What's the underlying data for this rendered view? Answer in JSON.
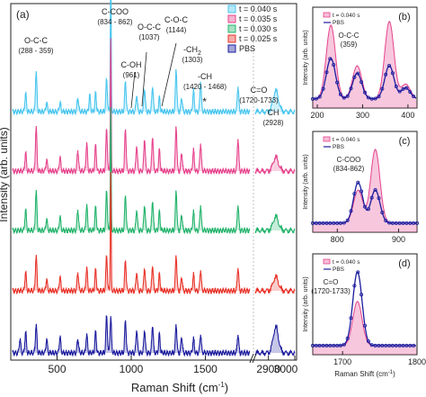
{
  "colors": {
    "c040": "#49c6ef",
    "c035": "#e6448d",
    "c030": "#22b36b",
    "c025": "#e8332a",
    "pbs": "#1c1c9e",
    "axis": "#222222",
    "marker": "#ff3a3a"
  },
  "main": {
    "panel_label": "(a)",
    "ylabel": "Intensity (arb. units)",
    "xlabel": "Raman Shift (cm",
    "xlabel_sup": "-1",
    "xlabel_end": ")",
    "xticks_left": [
      "500",
      "1000",
      "1500"
    ],
    "xticks_right": [
      "2900",
      "3000"
    ],
    "legend": [
      {
        "key": "c040",
        "label": "t = 0.040 s"
      },
      {
        "key": "c035",
        "label": "t = 0.035 s"
      },
      {
        "key": "c030",
        "label": "t = 0.030 s"
      },
      {
        "key": "c025",
        "label": "t = 0.025 s"
      },
      {
        "key": "pbs",
        "label": "PBS"
      }
    ],
    "annotations": [
      {
        "lines": [
          "O-C-C",
          "(288 - 359)"
        ]
      },
      {
        "lines": [
          "C-COO",
          "(834 - 862)"
        ]
      },
      {
        "lines": [
          "C-OH",
          "(961)"
        ]
      },
      {
        "lines": [
          "O-C-C",
          "(1037)"
        ]
      },
      {
        "lines": [
          "C-O-C",
          "(1144)"
        ]
      },
      {
        "lines": [
          "-CH",
          "(1303)"
        ],
        "sub": "2"
      },
      {
        "lines": [
          "-CH",
          "(1420 - 1468)"
        ]
      },
      {
        "lines": [
          "C=O",
          "(1720-1733)"
        ]
      },
      {
        "lines": [
          "CH",
          "(2928)"
        ]
      }
    ],
    "star": "*"
  },
  "insets": [
    {
      "label": "(b)",
      "legend": [
        "t = 0.040 s",
        "PBS"
      ],
      "annot": [
        "O-C-C",
        "(359)"
      ],
      "xticks": [
        "200",
        "300",
        "400"
      ],
      "ylabel": "Intensity (arb. units)"
    },
    {
      "label": "(c)",
      "legend": [
        "t = 0.040 s",
        "PBS"
      ],
      "annot": [
        "C-COO",
        "(834-862)"
      ],
      "xticks": [
        "800",
        "900"
      ],
      "ylabel": "Intensity (arb. units)"
    },
    {
      "label": "(d)",
      "legend": [
        "t = 0.040 s",
        "PBS"
      ],
      "annot": [
        "C=O",
        "(1720-1733)"
      ],
      "xticks": [
        "1700",
        "1800"
      ],
      "ylabel": "Intensity (arb. units)",
      "xlabel": "Raman Shift (cm",
      "xlabel_sup": "-1",
      "xlabel_end": ")"
    }
  ],
  "chart_data": [
    {
      "type": "line",
      "title": "",
      "xlabel": "Raman Shift (cm-1)",
      "ylabel": "Intensity (arb. units)",
      "xlim_segments": [
        [
          200,
          1800
        ],
        [
          2850,
          3000
        ]
      ],
      "axis_break": true,
      "grid": false,
      "legend_position": "top-right",
      "series_offset_stacked": true,
      "series": [
        {
          "name": "t = 0.040 s",
          "key": "c040",
          "offset": 4,
          "peaks": [
            [
              288,
              0.4
            ],
            [
              359,
              0.85
            ],
            [
              430,
              0.2
            ],
            [
              520,
              0.2
            ],
            [
              640,
              0.3
            ],
            [
              720,
              0.35
            ],
            [
              760,
              0.4
            ],
            [
              834,
              0.7
            ],
            [
              862,
              3.2
            ],
            [
              961,
              0.65
            ],
            [
              1037,
              0.35
            ],
            [
              1090,
              0.5
            ],
            [
              1144,
              0.55
            ],
            [
              1190,
              0.3
            ],
            [
              1303,
              0.9
            ],
            [
              1340,
              0.3
            ],
            [
              1420,
              0.45
            ],
            [
              1468,
              0.65
            ],
            [
              1720,
              0.55
            ],
            [
              2928,
              0.45
            ]
          ]
        },
        {
          "name": "t = 0.035 s",
          "key": "c035",
          "offset": 3,
          "peaks": [
            [
              288,
              0.4
            ],
            [
              359,
              0.95
            ],
            [
              430,
              0.25
            ],
            [
              520,
              0.3
            ],
            [
              640,
              0.45
            ],
            [
              700,
              0.6
            ],
            [
              760,
              0.55
            ],
            [
              834,
              0.9
            ],
            [
              862,
              2.8
            ],
            [
              961,
              0.9
            ],
            [
              1037,
              0.55
            ],
            [
              1090,
              0.7
            ],
            [
              1144,
              0.75
            ],
            [
              1190,
              0.45
            ],
            [
              1303,
              0.95
            ],
            [
              1340,
              0.4
            ],
            [
              1420,
              0.45
            ],
            [
              1468,
              0.6
            ],
            [
              1720,
              0.7
            ],
            [
              2928,
              0.3
            ]
          ]
        },
        {
          "name": "t = 0.030 s",
          "key": "c030",
          "offset": 2,
          "peaks": [
            [
              288,
              0.45
            ],
            [
              359,
              0.85
            ],
            [
              430,
              0.25
            ],
            [
              520,
              0.3
            ],
            [
              640,
              0.45
            ],
            [
              700,
              0.55
            ],
            [
              760,
              0.5
            ],
            [
              834,
              0.85
            ],
            [
              862,
              2.6
            ],
            [
              961,
              0.75
            ],
            [
              1037,
              0.45
            ],
            [
              1090,
              0.55
            ],
            [
              1144,
              0.65
            ],
            [
              1190,
              0.4
            ],
            [
              1303,
              0.85
            ],
            [
              1340,
              0.35
            ],
            [
              1420,
              0.4
            ],
            [
              1468,
              0.55
            ],
            [
              1720,
              0.55
            ],
            [
              2928,
              0.3
            ]
          ]
        },
        {
          "name": "t = 0.025 s",
          "key": "c025",
          "offset": 1,
          "peaks": [
            [
              288,
              0.4
            ],
            [
              359,
              0.75
            ],
            [
              430,
              0.25
            ],
            [
              520,
              0.3
            ],
            [
              640,
              0.4
            ],
            [
              700,
              0.5
            ],
            [
              760,
              0.45
            ],
            [
              834,
              0.75
            ],
            [
              862,
              2.5
            ],
            [
              961,
              0.65
            ],
            [
              1037,
              0.4
            ],
            [
              1090,
              0.5
            ],
            [
              1144,
              0.55
            ],
            [
              1190,
              0.35
            ],
            [
              1303,
              0.75
            ],
            [
              1340,
              0.3
            ],
            [
              1420,
              0.35
            ],
            [
              1468,
              0.45
            ],
            [
              1720,
              0.5
            ],
            [
              2928,
              0.3
            ]
          ]
        },
        {
          "name": "PBS",
          "key": "pbs",
          "offset": 0,
          "peaks": [
            [
              250,
              0.3
            ],
            [
              288,
              0.45
            ],
            [
              359,
              0.6
            ],
            [
              430,
              0.3
            ],
            [
              520,
              0.35
            ],
            [
              640,
              0.3
            ],
            [
              700,
              0.4
            ],
            [
              760,
              0.45
            ],
            [
              834,
              0.8
            ],
            [
              862,
              0.75
            ],
            [
              961,
              0.7
            ],
            [
              1037,
              0.5
            ],
            [
              1090,
              0.5
            ],
            [
              1144,
              0.6
            ],
            [
              1190,
              0.4
            ],
            [
              1303,
              0.6
            ],
            [
              1340,
              0.35
            ],
            [
              1420,
              0.3
            ],
            [
              1468,
              0.4
            ],
            [
              1720,
              0.4
            ],
            [
              2928,
              0.55
            ]
          ]
        }
      ]
    },
    {
      "type": "line",
      "title": "",
      "xlim": [
        190,
        420
      ],
      "series": [
        {
          "name": "t = 0.040 s",
          "peaks": [
            [
              230,
              1.0
            ],
            [
              288,
              0.45
            ],
            [
              359,
              1.05
            ],
            [
              395,
              0.2
            ]
          ]
        },
        {
          "name": "PBS",
          "peaks": [
            [
              230,
              0.55
            ],
            [
              288,
              0.35
            ],
            [
              359,
              0.45
            ],
            [
              395,
              0.15
            ]
          ]
        }
      ]
    },
    {
      "type": "line",
      "title": "",
      "xlim": [
        760,
        930
      ],
      "series": [
        {
          "name": "t = 0.040 s",
          "peaks": [
            [
              834,
              0.45
            ],
            [
              862,
              1.0
            ]
          ]
        },
        {
          "name": "PBS",
          "peaks": [
            [
              834,
              0.55
            ],
            [
              862,
              0.45
            ]
          ]
        }
      ]
    },
    {
      "type": "line",
      "title": "",
      "xlim": [
        1660,
        1800
      ],
      "series": [
        {
          "name": "t = 0.040 s",
          "peaks": [
            [
              1720,
              0.6
            ]
          ]
        },
        {
          "name": "PBS",
          "peaks": [
            [
              1720,
              1.0
            ]
          ]
        }
      ]
    }
  ]
}
